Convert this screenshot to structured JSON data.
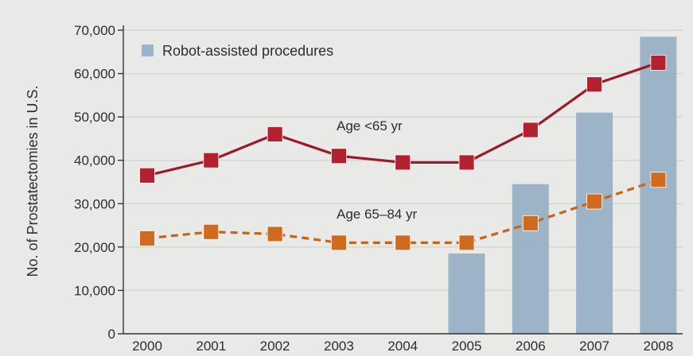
{
  "chart_data": {
    "type": "bar",
    "title": "",
    "xlabel": "",
    "ylabel": "No. of Prostatectomies in U.S.",
    "ylim": [
      0,
      70000
    ],
    "yticks": [
      {
        "value": 0,
        "label": "0"
      },
      {
        "value": 10000,
        "label": "10,000"
      },
      {
        "value": 20000,
        "label": "20,000"
      },
      {
        "value": 30000,
        "label": "30,000"
      },
      {
        "value": 40000,
        "label": "40,000"
      },
      {
        "value": 50000,
        "label": "50,000"
      },
      {
        "value": 60000,
        "label": "60,000"
      },
      {
        "value": 70000,
        "label": "70,000"
      }
    ],
    "categories": [
      "2000",
      "2001",
      "2002",
      "2003",
      "2004",
      "2005",
      "2006",
      "2007",
      "2008"
    ],
    "grid": true,
    "legend_position": "top-left",
    "bars": {
      "name": "Robot-assisted procedures",
      "color": "#9db3c6",
      "values": [
        null,
        null,
        null,
        null,
        null,
        18500,
        34500,
        51000,
        68500
      ]
    },
    "series": [
      {
        "name": "Age <65 yr",
        "type": "line",
        "style": "solid",
        "color": "#9b1b2a",
        "marker_color": "#b3202f",
        "values": [
          36500,
          40000,
          46000,
          41000,
          39500,
          39500,
          47000,
          57500,
          62500
        ]
      },
      {
        "name": "Age 65–84 yr",
        "type": "line",
        "style": "dashed",
        "color": "#c8641a",
        "marker_color": "#cf6a1e",
        "values": [
          22000,
          23500,
          23000,
          21000,
          21000,
          21000,
          25500,
          30500,
          35500
        ]
      }
    ]
  }
}
